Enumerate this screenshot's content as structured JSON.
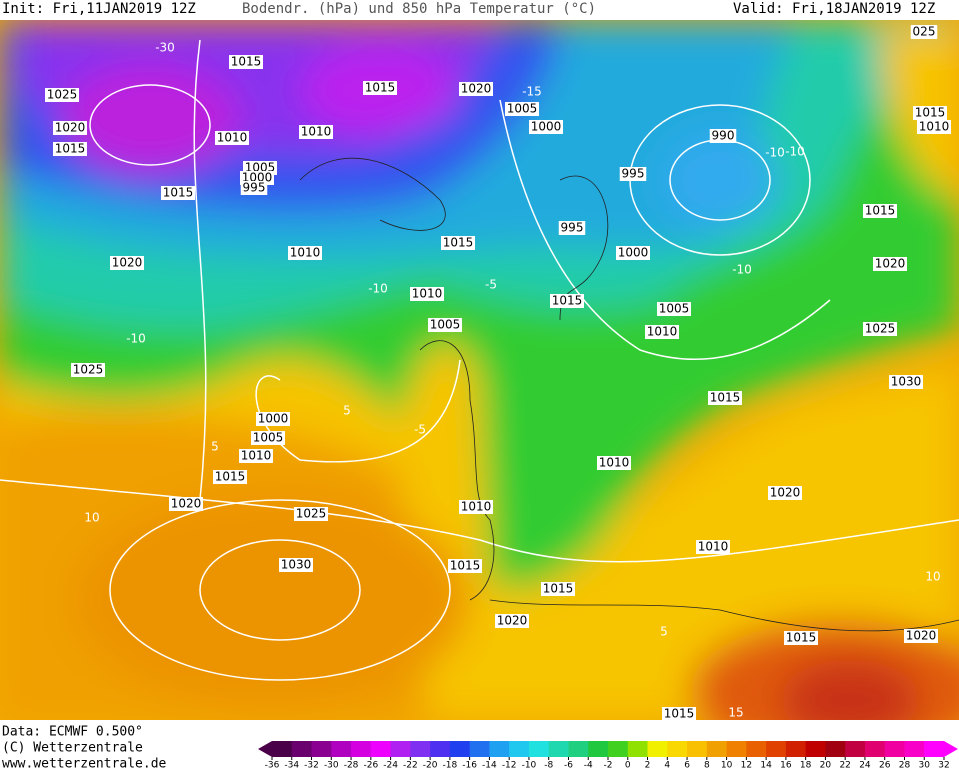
{
  "header": {
    "init": "Init: Fri,11JAN2019 12Z",
    "title": "Bodendr. (hPa) und 850 hPa Temperatur (°C)",
    "valid": "Valid: Fri,18JAN2019 12Z"
  },
  "footer": {
    "data": "Data: ECMWF  0.500°",
    "copyright": "(C) Wetterzentrale",
    "url": "www.wetterzentrale.de"
  },
  "isobar_labels": [
    "1015",
    "1025",
    "1020",
    "1015",
    "1015",
    "1020",
    "1005",
    "1000",
    "1010",
    "1010",
    "990",
    "1005",
    "1000",
    "995",
    "1015",
    "995",
    "1015",
    "1015",
    "995",
    "1010",
    "1000",
    "1020",
    "1020",
    "1010",
    "1015",
    "1005",
    "1010",
    "1005",
    "1025",
    "1025",
    "1030",
    "1015",
    "1000",
    "1005",
    "1010",
    "1015",
    "1010",
    "1020",
    "1020",
    "1025",
    "1010",
    "1010",
    "1030",
    "1015",
    "1015",
    "1020",
    "1015",
    "1020",
    "1015",
    "025",
    "1015",
    "1010"
  ],
  "contour_labels": [
    "-30",
    "-10",
    "-10",
    "-10",
    "-10",
    "-5",
    "5",
    "5",
    "10",
    "10",
    "5",
    "15",
    "-15",
    "-10",
    "-5"
  ],
  "colorbar_ticks": [
    -36,
    -34,
    -32,
    -30,
    -28,
    -26,
    -24,
    -22,
    -20,
    -18,
    -16,
    -14,
    -12,
    -10,
    -8,
    -6,
    -4,
    -2,
    0,
    2,
    4,
    6,
    8,
    10,
    12,
    14,
    16,
    18,
    20,
    22,
    24,
    26,
    28,
    30,
    32
  ]
}
